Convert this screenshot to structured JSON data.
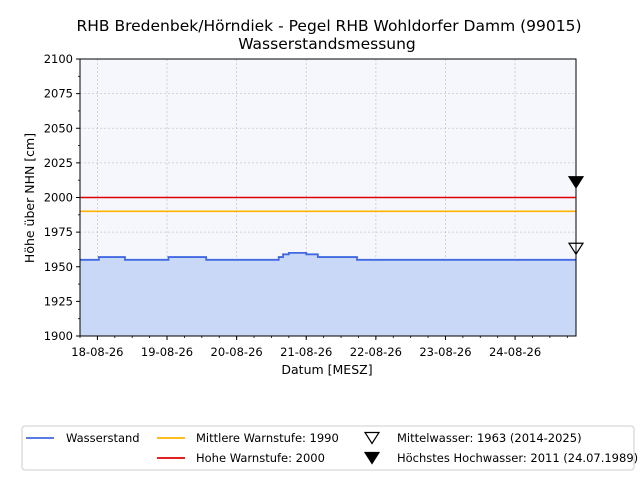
{
  "chart_data": {
    "type": "line",
    "title": "RHB Bredenbek/Hörndiek - Pegel RHB Wohldorfer Damm (99015)",
    "subtitle": "Wasserstandsmessung",
    "xlabel": "Datum [MESZ]",
    "ylabel": "Höhe über NHN [cm]",
    "ylim": [
      1900,
      2100
    ],
    "yticks": [
      "1900",
      "1925",
      "1950",
      "1975",
      "2000",
      "2025",
      "2050",
      "2075",
      "2100"
    ],
    "xlim": [
      "2026-08-17T18:00",
      "2026-08-24T21:00"
    ],
    "xticks": [
      {
        "date": "2026-08-18T00:00",
        "label": "18-08-26"
      },
      {
        "date": "2026-08-19T00:00",
        "label": "19-08-26"
      },
      {
        "date": "2026-08-20T00:00",
        "label": "20-08-26"
      },
      {
        "date": "2026-08-21T00:00",
        "label": "21-08-26"
      },
      {
        "date": "2026-08-22T00:00",
        "label": "22-08-26"
      },
      {
        "date": "2026-08-23T00:00",
        "label": "23-08-26"
      },
      {
        "date": "2026-08-24T00:00",
        "label": "24-08-26"
      }
    ],
    "grid": true,
    "legend_position": "bottom",
    "series": [
      {
        "name": "Wasserstand",
        "color": "#4169e1",
        "fill": "#c8d8f6",
        "points": [
          [
            "2026-08-17T18:00",
            1955
          ],
          [
            "2026-08-18T00:30",
            1955
          ],
          [
            "2026-08-18T00:30",
            1957
          ],
          [
            "2026-08-18T09:30",
            1957
          ],
          [
            "2026-08-18T09:30",
            1955
          ],
          [
            "2026-08-19T00:30",
            1955
          ],
          [
            "2026-08-19T00:30",
            1957
          ],
          [
            "2026-08-19T13:30",
            1957
          ],
          [
            "2026-08-19T13:30",
            1955
          ],
          [
            "2026-08-20T14:30",
            1955
          ],
          [
            "2026-08-20T14:30",
            1957
          ],
          [
            "2026-08-20T16:00",
            1957
          ],
          [
            "2026-08-20T16:00",
            1959
          ],
          [
            "2026-08-20T18:00",
            1959
          ],
          [
            "2026-08-20T18:00",
            1960
          ],
          [
            "2026-08-21T00:00",
            1960
          ],
          [
            "2026-08-21T00:00",
            1959
          ],
          [
            "2026-08-21T04:00",
            1959
          ],
          [
            "2026-08-21T04:00",
            1957
          ],
          [
            "2026-08-21T17:30",
            1957
          ],
          [
            "2026-08-21T17:30",
            1955
          ],
          [
            "2026-08-24T21:00",
            1955
          ]
        ]
      }
    ],
    "reference_lines": [
      {
        "name": "Mittlere Warnstufe: 1990",
        "value": 1990,
        "color": "#ffb300"
      },
      {
        "name": "Hohe Warnstufe: 2000",
        "value": 2000,
        "color": "#e00000"
      }
    ],
    "markers": [
      {
        "name": "Mittelwasser: 1963 (2014-2025)",
        "value": 1963,
        "symbol": "open-triangle-down"
      },
      {
        "name": "Höchstes Hochwasser: 2011 (24.07.1989)",
        "value": 2011,
        "symbol": "filled-triangle-down"
      }
    ]
  }
}
